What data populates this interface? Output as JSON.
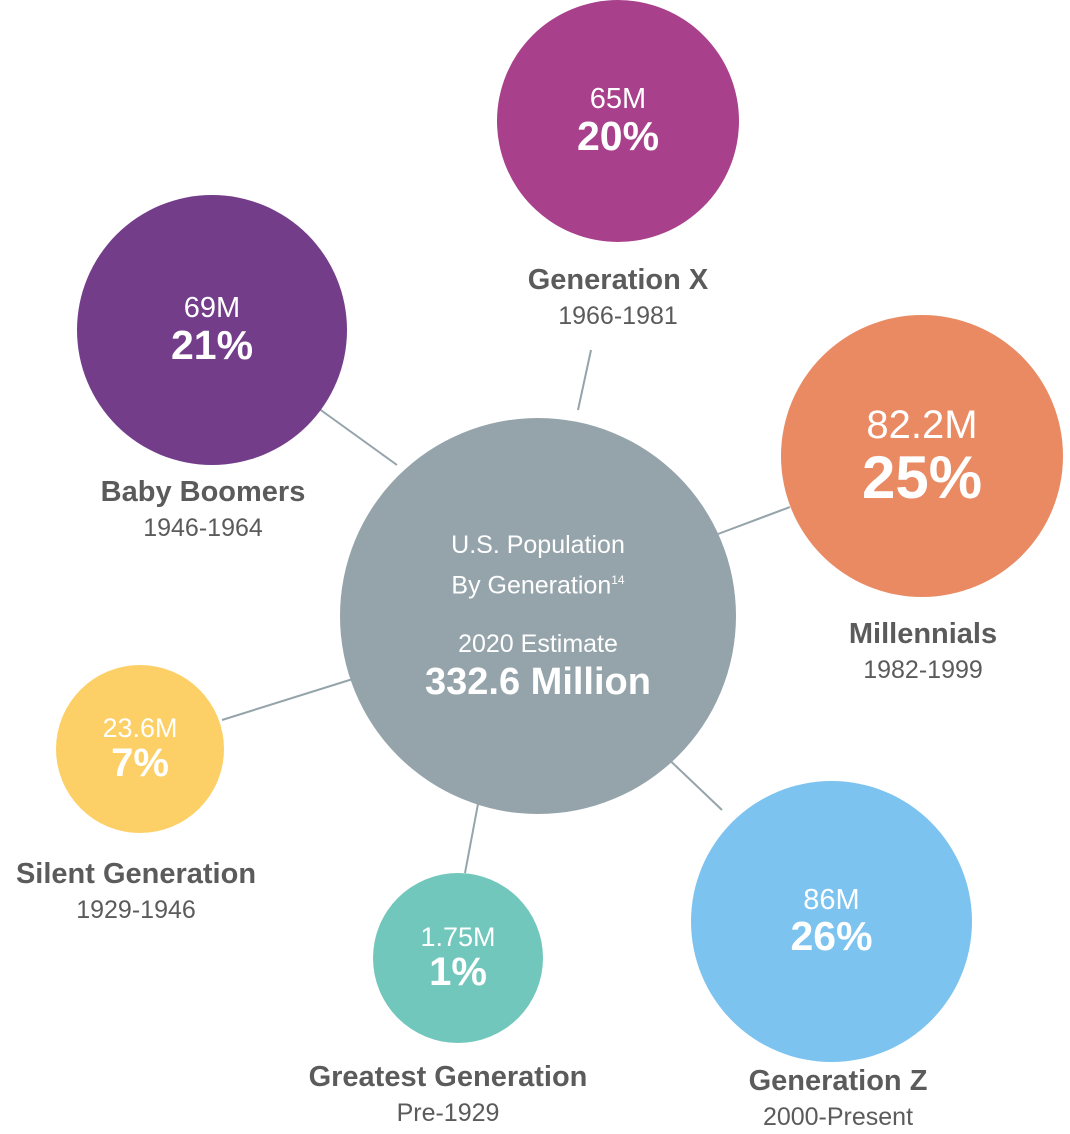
{
  "center": {
    "title_line1": "U.S. Population",
    "title_line2": "By Generation",
    "footnote": "14",
    "estimate_label": "2020 Estimate",
    "total": "332.6 Million",
    "color": "#95a4ab"
  },
  "line_color": "#95a4ab",
  "generations": [
    {
      "key": "genx",
      "name": "Generation X",
      "years": "1966-1981",
      "count": "65M",
      "percent": "20%",
      "color": "#a9408c"
    },
    {
      "key": "boom",
      "name": "Baby Boomers",
      "years": "1946-1964",
      "count": "69M",
      "percent": "21%",
      "color": "#733d8a"
    },
    {
      "key": "mill",
      "name": "Millennials",
      "years": "1982-1999",
      "count": "82.2M",
      "percent": "25%",
      "color": "#e98a63"
    },
    {
      "key": "silent",
      "name": "Silent Generation",
      "years": "1929-1946",
      "count": "23.6M",
      "percent": "7%",
      "color": "#fcd066"
    },
    {
      "key": "great",
      "name": "Greatest Generation",
      "years": "Pre-1929",
      "count": "1.75M",
      "percent": "1%",
      "color": "#72c7bc"
    },
    {
      "key": "genz",
      "name": "Generation Z",
      "years": "2000-Present",
      "count": "86M",
      "percent": "26%",
      "color": "#7cc3ef"
    }
  ]
}
